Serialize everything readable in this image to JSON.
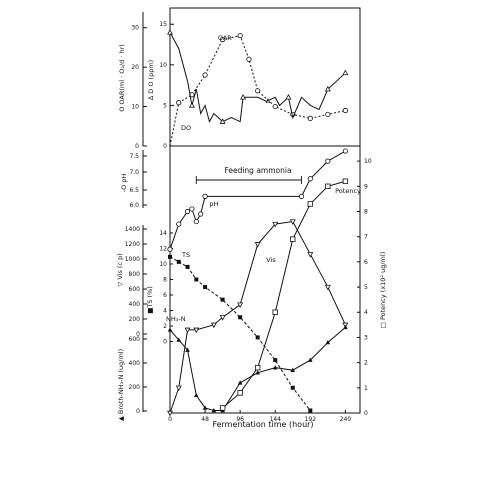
{
  "chart_data": [
    {
      "type": "line",
      "panel": "top",
      "x_axis": {
        "ticks": [
          0,
          48,
          96,
          144,
          192,
          240
        ],
        "range": [
          0,
          260
        ]
      },
      "left_axis": {
        "label": "O OAR(ml · O₂/d · hr)",
        "ticks": [
          0,
          10,
          20,
          30
        ],
        "range": [
          0,
          35
        ]
      },
      "right_axis_inner": {
        "label": "Δ D O (ppm)",
        "ticks": [
          0,
          5,
          10,
          15
        ],
        "range": [
          0,
          17
        ]
      },
      "series": [
        {
          "name": "OAR",
          "marker": "circle",
          "style": "dashed",
          "points": [
            [
              0,
              0
            ],
            [
              12,
              11
            ],
            [
              30,
              13
            ],
            [
              48,
              18
            ],
            [
              72,
              27
            ],
            [
              96,
              28
            ],
            [
              108,
              22
            ],
            [
              120,
              14
            ],
            [
              144,
              10
            ],
            [
              168,
              8
            ],
            [
              192,
              7
            ],
            [
              216,
              8
            ],
            [
              240,
              9
            ]
          ]
        },
        {
          "name": "DO",
          "marker": "triangle",
          "style": "solid",
          "points": [
            [
              0,
              14
            ],
            [
              12,
              12
            ],
            [
              24,
              8
            ],
            [
              30,
              5
            ],
            [
              36,
              7
            ],
            [
              42,
              4
            ],
            [
              48,
              5
            ],
            [
              54,
              3
            ],
            [
              60,
              4
            ],
            [
              72,
              3
            ],
            [
              84,
              3.5
            ],
            [
              96,
              3
            ],
            [
              100,
              6
            ],
            [
              120,
              6
            ],
            [
              132,
              5.5
            ],
            [
              144,
              6
            ],
            [
              150,
              5
            ],
            [
              162,
              6
            ],
            [
              168,
              3.5
            ],
            [
              180,
              6
            ],
            [
              192,
              5
            ],
            [
              204,
              4.5
            ],
            [
              216,
              7
            ],
            [
              228,
              8
            ],
            [
              240,
              9
            ]
          ]
        }
      ],
      "annotations": [
        "OAR",
        "DO",
        "Δ"
      ]
    },
    {
      "type": "line",
      "panel": "bottom",
      "x_axis": {
        "label": "Fermentation time (hour)",
        "ticks": [
          0,
          48,
          96,
          144,
          192,
          240
        ],
        "range": [
          0,
          260
        ]
      },
      "ph_axis": {
        "label": "-O pH",
        "ticks": [
          "6.0",
          "6.5",
          "7.0",
          "7.5"
        ],
        "range": [
          5.8,
          7.8
        ]
      },
      "vis_axis": {
        "label": "▽ Vis (c p)",
        "ticks": [
          0,
          200,
          400,
          600,
          800,
          1000,
          1200,
          1400
        ]
      },
      "ts_axis": {
        "label": "■TS (%)",
        "ticks": [
          0,
          2,
          4,
          6,
          8,
          10,
          12,
          14
        ]
      },
      "nh3_axis": {
        "label": "▲ Broth-NH₃-N (ug/ml)",
        "ticks": [
          0,
          200,
          400,
          600
        ]
      },
      "potency_axis": {
        "label": "□ Potency (x10² ug/ml)",
        "ticks": [
          0,
          1,
          2,
          3,
          4,
          5,
          6,
          7,
          8,
          9,
          10
        ],
        "range": [
          0,
          10
        ]
      },
      "feeding": {
        "label": "Feeding ammonia",
        "start_hour": 36,
        "end_hour": 180
      },
      "series": [
        {
          "name": "pH",
          "marker": "circle",
          "unit_range": [
            0,
            10
          ],
          "points": [
            [
              0,
              6.5
            ],
            [
              12,
              7.5
            ],
            [
              24,
              8.0
            ],
            [
              30,
              8.1
            ],
            [
              36,
              7.6
            ],
            [
              42,
              7.9
            ],
            [
              48,
              8.6
            ],
            [
              180,
              8.6
            ],
            [
              192,
              9.3
            ],
            [
              216,
              10.0
            ],
            [
              240,
              10.4
            ]
          ]
        },
        {
          "name": "Vis",
          "marker": "triangle-down",
          "unit_range": [
            0,
            10
          ],
          "points": [
            [
              0,
              0
            ],
            [
              12,
              1.0
            ],
            [
              24,
              3.3
            ],
            [
              36,
              3.3
            ],
            [
              60,
              3.5
            ],
            [
              72,
              3.8
            ],
            [
              96,
              4.3
            ],
            [
              120,
              6.7
            ],
            [
              144,
              7.5
            ],
            [
              168,
              7.6
            ],
            [
              192,
              6.3
            ],
            [
              216,
              5.0
            ],
            [
              240,
              3.5
            ]
          ]
        },
        {
          "name": "TS",
          "marker": "square-filled",
          "unit_range": [
            0,
            10
          ],
          "points": [
            [
              0,
              6.2
            ],
            [
              12,
              6.0
            ],
            [
              24,
              5.8
            ],
            [
              36,
              5.3
            ],
            [
              48,
              5.0
            ],
            [
              72,
              4.5
            ],
            [
              96,
              3.8
            ],
            [
              120,
              3.0
            ],
            [
              144,
              2.1
            ],
            [
              168,
              1.0
            ],
            [
              192,
              0.1
            ]
          ]
        },
        {
          "name": "NH₃-N",
          "marker": "triangle-filled",
          "unit_range": [
            0,
            10
          ],
          "points": [
            [
              0,
              3.3
            ],
            [
              12,
              2.9
            ],
            [
              24,
              2.5
            ],
            [
              36,
              0.7
            ],
            [
              48,
              0.2
            ],
            [
              60,
              0.1
            ],
            [
              72,
              0.1
            ],
            [
              96,
              1.2
            ],
            [
              120,
              1.6
            ],
            [
              144,
              1.8
            ],
            [
              168,
              1.7
            ],
            [
              192,
              2.1
            ],
            [
              216,
              2.8
            ],
            [
              240,
              3.4
            ]
          ]
        },
        {
          "name": "Potency",
          "marker": "square-open",
          "unit_range": [
            0,
            10
          ],
          "points": [
            [
              72,
              0.2
            ],
            [
              96,
              0.8
            ],
            [
              120,
              1.8
            ],
            [
              144,
              4.0
            ],
            [
              168,
              6.9
            ],
            [
              192,
              8.3
            ],
            [
              216,
              9.0
            ],
            [
              240,
              9.2
            ]
          ]
        }
      ],
      "labels": [
        "pH",
        "Vis",
        "TS",
        "NH₃-N",
        "Potency"
      ]
    }
  ]
}
